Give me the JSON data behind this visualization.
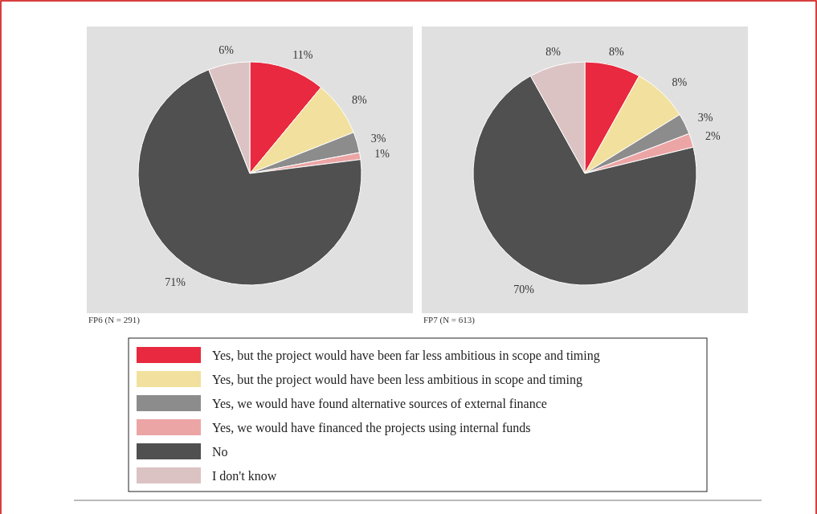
{
  "chart_data": [
    {
      "type": "pie",
      "categories": [
        "Yes, but the project would have been far less ambitious in scope and timing",
        "Yes, but the project would have been less ambitious in scope and timing",
        "Yes, we would have found alternative sources of external finance",
        "Yes, we would have financed the projects using internal funds",
        "No",
        "I don't know"
      ],
      "values": [
        11,
        8,
        3,
        1,
        71,
        6
      ],
      "colors": [
        "#e8293f",
        "#f2e09e",
        "#8c8c8c",
        "#eca5a5",
        "#505050",
        "#dcc3c3"
      ],
      "value_labels": [
        "11%",
        "8%",
        "3%",
        "1%",
        "71%",
        "6%"
      ],
      "annotations": [
        "FP6 (N = 291)"
      ],
      "legend": "bottom"
    },
    {
      "type": "pie",
      "categories": [
        null,
        null,
        null,
        null,
        null,
        null
      ],
      "values": [
        8,
        8,
        3,
        2,
        70,
        8
      ],
      "colors": [
        "#e8293f",
        "#f2e09e",
        "#8c8c8c",
        "#eca5a5",
        "#505050",
        "#dcc3c3"
      ],
      "value_labels": [
        "8%",
        "8%",
        "3%",
        "2%",
        "70%",
        "8%"
      ],
      "annotations": [
        "FP7 (N = 613)"
      ]
    }
  ]
}
